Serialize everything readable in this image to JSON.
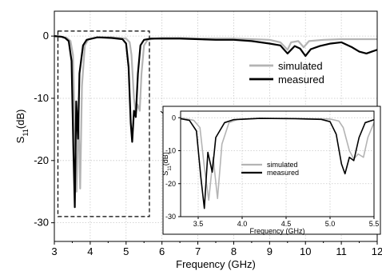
{
  "chart_data": [
    {
      "type": "line",
      "xlabel": "Frequency (GHz)",
      "ylabel_base": "S",
      "ylabel_sub": "11",
      "ylabel_tail": "(dB)",
      "xlim": [
        3,
        12
      ],
      "ylim": [
        -33,
        4
      ],
      "xticks": [
        3,
        4,
        5,
        6,
        7,
        8,
        9,
        10,
        11,
        12
      ],
      "yticks": [
        0,
        -10,
        -20,
        -30
      ],
      "grid": true,
      "legend": "right",
      "series": [
        {
          "name": "simulated",
          "color": "#b4b4b4",
          "points": [
            [
              3.0,
              0.0
            ],
            [
              3.2,
              -0.1
            ],
            [
              3.35,
              -0.3
            ],
            [
              3.45,
              -0.8
            ],
            [
              3.52,
              -3
            ],
            [
              3.57,
              -15
            ],
            [
              3.62,
              -25
            ],
            [
              3.67,
              -12
            ],
            [
              3.72,
              -24.5
            ],
            [
              3.77,
              -8
            ],
            [
              3.85,
              -1.5
            ],
            [
              3.95,
              -0.5
            ],
            [
              4.2,
              -0.2
            ],
            [
              4.6,
              -0.2
            ],
            [
              5.0,
              -0.4
            ],
            [
              5.1,
              -1
            ],
            [
              5.15,
              -3
            ],
            [
              5.22,
              -10
            ],
            [
              5.27,
              -12.5
            ],
            [
              5.32,
              -11
            ],
            [
              5.38,
              -12
            ],
            [
              5.43,
              -6
            ],
            [
              5.5,
              -1.5
            ],
            [
              5.6,
              -0.6
            ],
            [
              5.8,
              -0.4
            ],
            [
              6.0,
              -0.3
            ],
            [
              6.5,
              -0.3
            ],
            [
              7.0,
              -0.4
            ],
            [
              8.0,
              -0.4
            ],
            [
              8.5,
              -0.5
            ],
            [
              9.0,
              -0.6
            ],
            [
              9.3,
              -1.0
            ],
            [
              9.5,
              -2.2
            ],
            [
              9.6,
              -1.0
            ],
            [
              9.8,
              -0.8
            ],
            [
              9.95,
              -1.8
            ],
            [
              10.1,
              -0.8
            ],
            [
              10.5,
              -0.6
            ],
            [
              11.0,
              -0.5
            ],
            [
              12.0,
              -0.5
            ]
          ]
        },
        {
          "name": "measured",
          "color": "#000000",
          "points": [
            [
              3.0,
              0.0
            ],
            [
              3.2,
              -0.1
            ],
            [
              3.3,
              -0.3
            ],
            [
              3.4,
              -0.8
            ],
            [
              3.48,
              -4
            ],
            [
              3.53,
              -18
            ],
            [
              3.57,
              -27.5
            ],
            [
              3.61,
              -10.5
            ],
            [
              3.66,
              -16.5
            ],
            [
              3.7,
              -6
            ],
            [
              3.8,
              -1.5
            ],
            [
              3.9,
              -0.6
            ],
            [
              4.2,
              -0.2
            ],
            [
              4.6,
              -0.3
            ],
            [
              4.9,
              -0.5
            ],
            [
              5.0,
              -1.2
            ],
            [
              5.07,
              -5
            ],
            [
              5.13,
              -14
            ],
            [
              5.17,
              -17
            ],
            [
              5.22,
              -12
            ],
            [
              5.27,
              -13
            ],
            [
              5.33,
              -6
            ],
            [
              5.4,
              -1.5
            ],
            [
              5.5,
              -0.6
            ],
            [
              5.7,
              -0.4
            ],
            [
              6.0,
              -0.4
            ],
            [
              6.5,
              -0.4
            ],
            [
              7.0,
              -0.5
            ],
            [
              7.5,
              -0.6
            ],
            [
              8.0,
              -0.6
            ],
            [
              8.5,
              -0.8
            ],
            [
              9.0,
              -1.2
            ],
            [
              9.3,
              -1.5
            ],
            [
              9.5,
              -2.8
            ],
            [
              9.7,
              -1.6
            ],
            [
              9.85,
              -2.0
            ],
            [
              10.0,
              -3.2
            ],
            [
              10.15,
              -2.1
            ],
            [
              10.4,
              -1.6
            ],
            [
              10.7,
              -1.2
            ],
            [
              11.0,
              -1.0
            ],
            [
              11.3,
              -1.8
            ],
            [
              11.5,
              -2.5
            ],
            [
              11.7,
              -2.8
            ],
            [
              11.85,
              -2.5
            ],
            [
              12.0,
              -2.2
            ]
          ]
        }
      ]
    },
    {
      "type": "line",
      "xlabel": "Frequency (GHz)",
      "ylabel_base": "S",
      "ylabel_sub": "11",
      "ylabel_tail": "(dB)",
      "xlim": [
        3.3,
        5.5
      ],
      "ylim": [
        -30,
        2
      ],
      "xticks": [
        3.5,
        4.0,
        4.5,
        5.0,
        5.5
      ],
      "xtick_labels": [
        "3.5",
        "4.0",
        "4.5",
        "5.0",
        "5.5"
      ],
      "yticks": [
        0,
        -10,
        -20,
        -30
      ],
      "grid": true,
      "legend": "center-left",
      "series": [
        {
          "name": "simulated",
          "color": "#b4b4b4",
          "points": [
            [
              3.3,
              0.0
            ],
            [
              3.45,
              -0.8
            ],
            [
              3.52,
              -3
            ],
            [
              3.57,
              -15
            ],
            [
              3.62,
              -25
            ],
            [
              3.67,
              -12
            ],
            [
              3.72,
              -24.5
            ],
            [
              3.77,
              -8
            ],
            [
              3.85,
              -1.5
            ],
            [
              3.95,
              -0.5
            ],
            [
              4.2,
              -0.2
            ],
            [
              4.6,
              -0.2
            ],
            [
              5.0,
              -0.4
            ],
            [
              5.1,
              -1
            ],
            [
              5.15,
              -3
            ],
            [
              5.22,
              -10
            ],
            [
              5.27,
              -12.5
            ],
            [
              5.32,
              -11
            ],
            [
              5.38,
              -12
            ],
            [
              5.43,
              -6
            ],
            [
              5.5,
              -1.5
            ]
          ]
        },
        {
          "name": "measured",
          "color": "#000000",
          "points": [
            [
              3.3,
              -0.3
            ],
            [
              3.4,
              -0.8
            ],
            [
              3.48,
              -4
            ],
            [
              3.53,
              -18
            ],
            [
              3.57,
              -27.5
            ],
            [
              3.61,
              -10.5
            ],
            [
              3.66,
              -16.5
            ],
            [
              3.7,
              -6
            ],
            [
              3.8,
              -1.5
            ],
            [
              3.9,
              -0.6
            ],
            [
              4.2,
              -0.2
            ],
            [
              4.6,
              -0.3
            ],
            [
              4.9,
              -0.5
            ],
            [
              5.0,
              -1.2
            ],
            [
              5.07,
              -5
            ],
            [
              5.13,
              -14
            ],
            [
              5.17,
              -17
            ],
            [
              5.22,
              -12
            ],
            [
              5.27,
              -13
            ],
            [
              5.33,
              -6
            ],
            [
              5.4,
              -1.5
            ],
            [
              5.5,
              -0.6
            ]
          ]
        }
      ]
    }
  ]
}
